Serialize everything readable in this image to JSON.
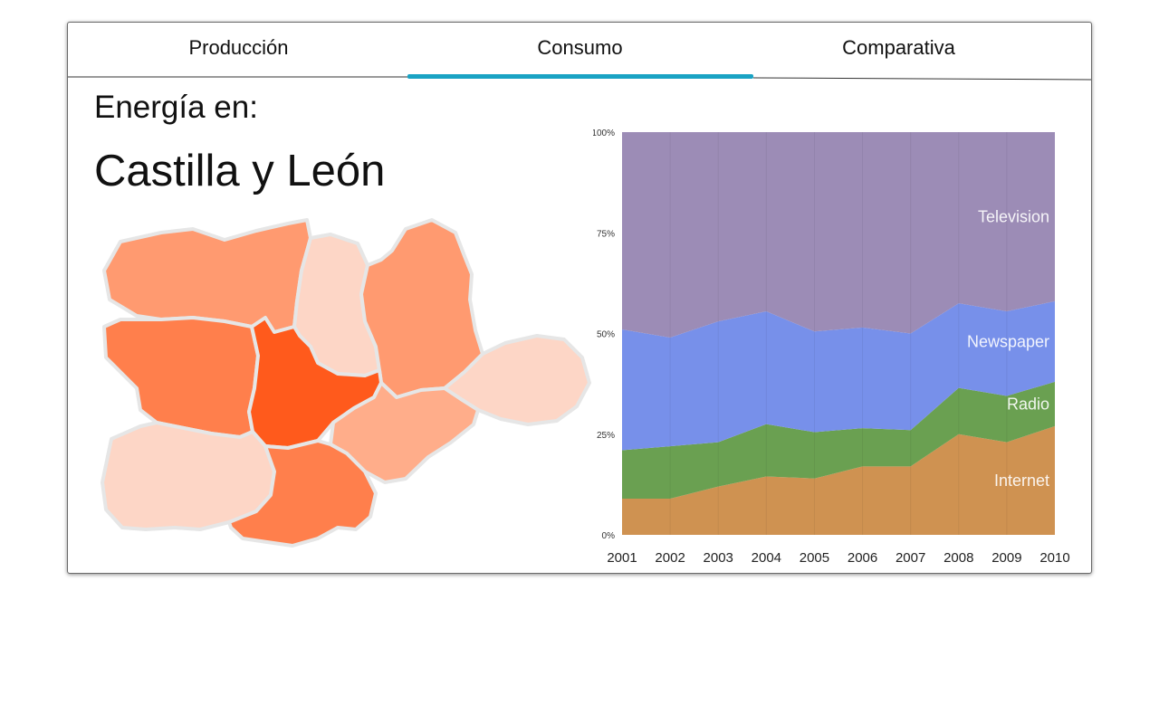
{
  "tabs": [
    {
      "label": "Producción"
    },
    {
      "label": "Consumo",
      "active": true
    },
    {
      "label": "Comparativa"
    }
  ],
  "accent_color": "#1aa3c4",
  "region": {
    "heading": "Energía en:",
    "name": "Castilla y León"
  },
  "map": {
    "description_colors": [
      "#ff9a70",
      "#fdd6c6",
      "#ff7f4c",
      "#ff5a1c",
      "#ffad8a"
    ]
  },
  "chart_data": {
    "type": "area",
    "stacked": true,
    "normalized": true,
    "x": [
      "2001",
      "2002",
      "2003",
      "2004",
      "2005",
      "2006",
      "2007",
      "2008",
      "2009",
      "2010"
    ],
    "ylim": [
      0,
      100
    ],
    "ytick_labels": [
      "0%",
      "25%",
      "50%",
      "75%",
      "100%"
    ],
    "ytick_values": [
      0,
      25,
      50,
      75,
      100
    ],
    "grid": false,
    "legend": "inline labels at right",
    "series": [
      {
        "name": "Internet",
        "color": "#cf9251",
        "values": [
          9,
          9,
          12,
          14.5,
          14,
          17,
          17,
          25,
          23,
          27
        ]
      },
      {
        "name": "Radio",
        "color": "#6aa051",
        "values": [
          12,
          13,
          11,
          13,
          11.5,
          9.5,
          9,
          11.5,
          11.5,
          11
        ]
      },
      {
        "name": "Newspaper",
        "color": "#7790ea",
        "values": [
          30,
          27,
          30,
          28,
          25,
          25,
          24,
          21,
          21,
          20
        ]
      },
      {
        "name": "Television",
        "color": "#9c8cb6",
        "values": [
          49,
          51,
          47,
          44.5,
          49.5,
          48.5,
          50,
          42.5,
          44.5,
          42
        ]
      }
    ]
  }
}
